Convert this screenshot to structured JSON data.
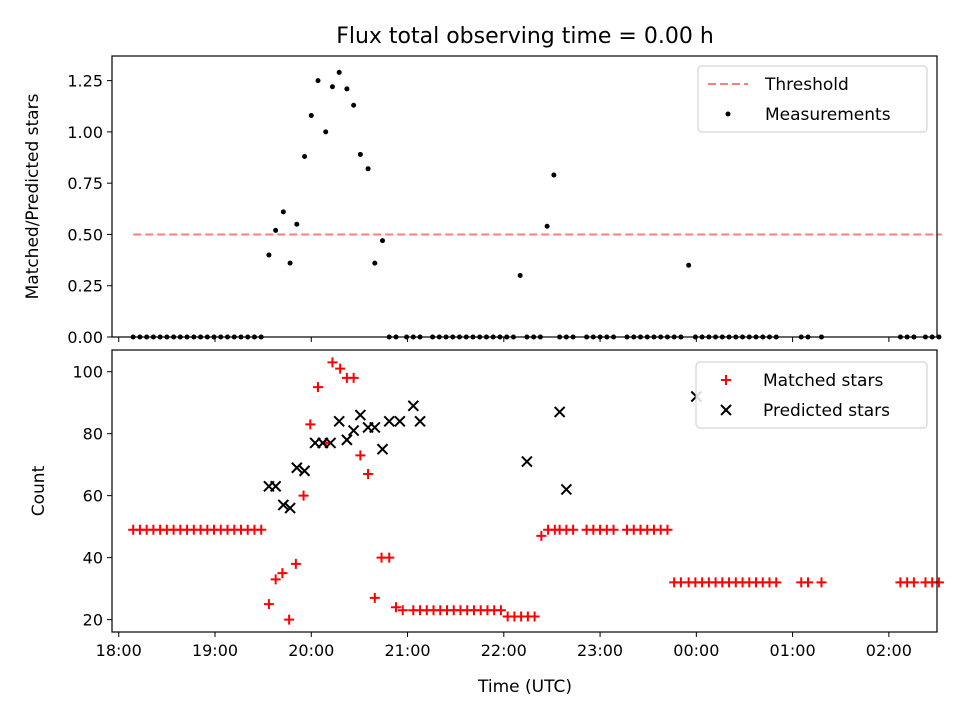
{
  "chart_data": {
    "title": "Flux total observing time = 0.00 h",
    "x_axis": {
      "label": "Time (UTC)",
      "range_hours": [
        17.93,
        26.5
      ],
      "ticks": [
        {
          "value": 18,
          "label": "18:00"
        },
        {
          "value": 19,
          "label": "19:00"
        },
        {
          "value": 20,
          "label": "20:00"
        },
        {
          "value": 21,
          "label": "21:00"
        },
        {
          "value": 22,
          "label": "22:00"
        },
        {
          "value": 23,
          "label": "23:00"
        },
        {
          "value": 24,
          "label": "00:00"
        },
        {
          "value": 25,
          "label": "01:00"
        },
        {
          "value": 26,
          "label": "02:00"
        }
      ]
    },
    "panels": [
      {
        "type": "scatter",
        "ylabel": "Matched/Predicted stars",
        "ylim": [
          0,
          1.37
        ],
        "yticks": [
          {
            "value": 0.0,
            "label": "0.00"
          },
          {
            "value": 0.25,
            "label": "0.25"
          },
          {
            "value": 0.5,
            "label": "0.50"
          },
          {
            "value": 0.75,
            "label": "0.75"
          },
          {
            "value": 1.0,
            "label": "1.00"
          },
          {
            "value": 1.25,
            "label": "1.25"
          }
        ],
        "legend_position": "top-right",
        "series": [
          {
            "name": "Threshold",
            "style": "dashed-line",
            "color": "#ff7f7f",
            "x": [
              18.15,
              26.55
            ],
            "y": [
              0.5,
              0.5
            ]
          },
          {
            "name": "Measurements",
            "style": "dot",
            "color": "#000000",
            "x": [
              18.15,
              18.22,
              18.29,
              18.36,
              18.43,
              18.5,
              18.57,
              18.64,
              18.71,
              18.78,
              18.85,
              18.92,
              18.99,
              19.06,
              19.13,
              19.2,
              19.27,
              19.34,
              19.41,
              19.48,
              19.56,
              19.63,
              19.71,
              19.78,
              19.85,
              19.93,
              20.0,
              20.07,
              20.15,
              20.22,
              20.29,
              20.37,
              20.44,
              20.51,
              20.59,
              20.66,
              20.74,
              20.81,
              20.88,
              20.99,
              21.06,
              21.13,
              21.26,
              21.33,
              21.4,
              21.47,
              21.54,
              21.61,
              21.68,
              21.75,
              21.82,
              21.89,
              21.96,
              22.03,
              22.1,
              22.17,
              22.24,
              22.31,
              22.38,
              22.45,
              22.52,
              22.58,
              22.65,
              22.72,
              22.86,
              22.93,
              23.0,
              23.07,
              23.14,
              23.28,
              23.35,
              23.42,
              23.49,
              23.56,
              23.63,
              23.7,
              23.77,
              23.84,
              23.92,
              23.99,
              24.06,
              24.13,
              24.2,
              24.27,
              24.34,
              24.41,
              24.48,
              24.55,
              24.62,
              24.69,
              24.76,
              24.83,
              25.09,
              25.16,
              25.3,
              26.12,
              26.19,
              26.26,
              26.38,
              26.45,
              26.52
            ],
            "y": [
              0,
              0,
              0,
              0,
              0,
              0,
              0,
              0,
              0,
              0,
              0,
              0,
              0,
              0,
              0,
              0,
              0,
              0,
              0,
              0,
              0.4,
              0.52,
              0.61,
              0.36,
              0.55,
              0.88,
              1.08,
              1.25,
              1.0,
              1.22,
              1.29,
              1.21,
              1.13,
              0.89,
              0.82,
              0.36,
              0.47,
              0,
              0,
              0,
              0,
              0,
              0,
              0,
              0,
              0,
              0,
              0,
              0,
              0,
              0,
              0,
              0,
              0,
              0,
              0.3,
              0,
              0,
              0,
              0.54,
              0.79,
              0,
              0,
              0,
              0,
              0,
              0,
              0,
              0,
              0,
              0,
              0,
              0,
              0,
              0,
              0,
              0,
              0,
              0.35,
              0,
              0,
              0,
              0,
              0,
              0,
              0,
              0,
              0,
              0,
              0,
              0,
              0,
              0,
              0,
              0,
              0,
              0,
              0,
              0,
              0,
              0
            ]
          }
        ]
      },
      {
        "type": "scatter",
        "ylabel": "Count",
        "ylim": [
          16,
          107
        ],
        "yticks": [
          {
            "value": 20,
            "label": "20"
          },
          {
            "value": 40,
            "label": "40"
          },
          {
            "value": 60,
            "label": "60"
          },
          {
            "value": 80,
            "label": "80"
          },
          {
            "value": 100,
            "label": "100"
          }
        ],
        "legend_position": "top-right",
        "series": [
          {
            "name": "Matched stars",
            "style": "plus",
            "color": "#ff0000",
            "x": [
              18.15,
              18.22,
              18.29,
              18.36,
              18.43,
              18.5,
              18.57,
              18.64,
              18.71,
              18.78,
              18.85,
              18.92,
              18.99,
              19.06,
              19.13,
              19.2,
              19.27,
              19.34,
              19.41,
              19.48,
              19.56,
              19.63,
              19.7,
              19.77,
              19.84,
              19.92,
              19.99,
              20.07,
              20.15,
              20.22,
              20.3,
              20.37,
              20.44,
              20.51,
              20.59,
              20.66,
              20.73,
              20.81,
              20.88,
              20.95,
              21.06,
              21.13,
              21.2,
              21.27,
              21.34,
              21.41,
              21.48,
              21.55,
              21.62,
              21.69,
              21.76,
              21.83,
              21.9,
              21.97,
              22.04,
              22.11,
              22.18,
              22.25,
              22.32,
              22.39,
              22.46,
              22.53,
              22.58,
              22.65,
              22.72,
              22.86,
              22.93,
              23.0,
              23.07,
              23.14,
              23.28,
              23.35,
              23.42,
              23.49,
              23.56,
              23.63,
              23.7,
              23.77,
              23.84,
              23.92,
              23.99,
              24.06,
              24.13,
              24.2,
              24.27,
              24.34,
              24.41,
              24.48,
              24.55,
              24.62,
              24.69,
              24.76,
              24.83,
              25.09,
              25.16,
              25.3,
              26.12,
              26.19,
              26.26,
              26.38,
              26.45,
              26.52
            ],
            "y": [
              49,
              49,
              49,
              49,
              49,
              49,
              49,
              49,
              49,
              49,
              49,
              49,
              49,
              49,
              49,
              49,
              49,
              49,
              49,
              49,
              25,
              33,
              35,
              20,
              38,
              60,
              83,
              95,
              77,
              103,
              101,
              98,
              98,
              73,
              67,
              27,
              40,
              40,
              24,
              23,
              23,
              23,
              23,
              23,
              23,
              23,
              23,
              23,
              23,
              23,
              23,
              23,
              23,
              23,
              21,
              21,
              21,
              21,
              21,
              47,
              49,
              49,
              49,
              49,
              49,
              49,
              49,
              49,
              49,
              49,
              49,
              49,
              49,
              49,
              49,
              49,
              49,
              32,
              32,
              32,
              32,
              32,
              32,
              32,
              32,
              32,
              32,
              32,
              32,
              32,
              32,
              32,
              32,
              32,
              32,
              32,
              32,
              32,
              32,
              32,
              32,
              32
            ]
          },
          {
            "name": "Predicted stars",
            "style": "x",
            "color": "#000000",
            "x": [
              19.56,
              19.63,
              19.71,
              19.78,
              19.85,
              19.93,
              20.04,
              20.12,
              20.2,
              20.29,
              20.37,
              20.44,
              20.51,
              20.59,
              20.66,
              20.74,
              20.81,
              20.92,
              21.06,
              21.13,
              22.24,
              22.58,
              22.65,
              24.0
            ],
            "y": [
              63,
              63,
              57,
              56,
              69,
              68,
              77,
              77,
              77,
              84,
              78,
              81,
              86,
              82,
              82,
              75,
              84,
              84,
              89,
              84,
              71,
              87,
              62,
              92
            ]
          }
        ]
      }
    ]
  }
}
